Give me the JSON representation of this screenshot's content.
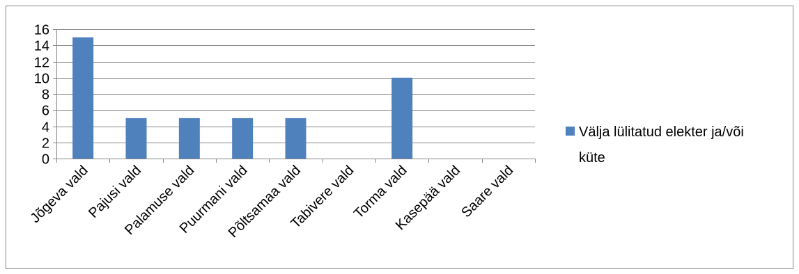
{
  "chart_data": {
    "type": "bar",
    "categories": [
      "Jõgeva vald",
      "Pajusi vald",
      "Palamuse vald",
      "Puurmani vald",
      "Põltsamaa vald",
      "Tabivere vald",
      "Torma vald",
      "Kasepää vald",
      "Saare vald"
    ],
    "series": [
      {
        "name": "Välja lülitatud elekter ja/või küte",
        "values": [
          15,
          5,
          5,
          5,
          5,
          0,
          10,
          0,
          0
        ],
        "color": "#4f81bd"
      }
    ],
    "title": "",
    "xlabel": "",
    "ylabel": "",
    "ylim": [
      0,
      16
    ],
    "yticks": [
      0,
      2,
      4,
      6,
      8,
      10,
      12,
      14,
      16
    ],
    "grid": true,
    "legend": {
      "position": "right",
      "lines": [
        "Välja lülitatud elekter ja/või",
        "küte"
      ]
    },
    "colors": {
      "gridline": "#868686",
      "axis": "#868686",
      "frame": "#868686"
    }
  }
}
